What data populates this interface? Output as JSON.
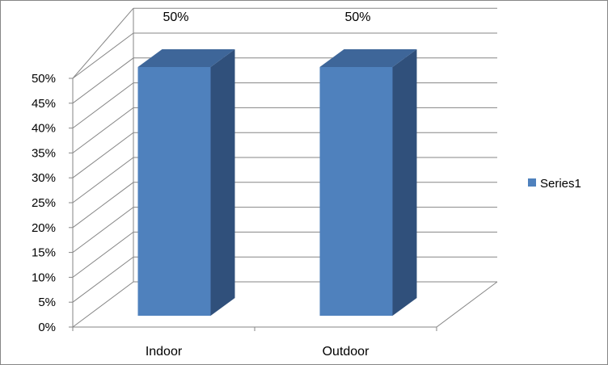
{
  "chart_data": {
    "type": "bar",
    "categories": [
      "Indoor",
      "Outdoor"
    ],
    "series": [
      {
        "name": "Series1",
        "values": [
          0.5,
          0.5
        ]
      }
    ],
    "data_labels": [
      "50%",
      "50%"
    ],
    "y_ticks": [
      "0%",
      "5%",
      "10%",
      "15%",
      "20%",
      "25%",
      "30%",
      "35%",
      "40%",
      "45%",
      "50%"
    ],
    "ylim": [
      0,
      0.5
    ],
    "grid": true,
    "legend_position": "right",
    "style": "3d-column",
    "colors": {
      "front": "#4F81BD",
      "side": "#30507B",
      "top": "#3E6699",
      "grid": "#868686"
    }
  }
}
